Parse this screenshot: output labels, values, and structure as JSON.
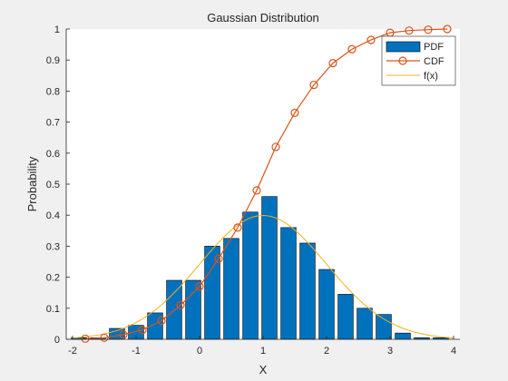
{
  "chart_data": {
    "type": "bar",
    "title": "Gaussian Distribution",
    "xlabel": "X",
    "ylabel": "Probability",
    "xlim": [
      -2.1,
      4.1
    ],
    "ylim": [
      0,
      1
    ],
    "xticks": [
      -2,
      -1,
      0,
      1,
      2,
      3,
      4
    ],
    "yticks": [
      0,
      0.1,
      0.2,
      0.3,
      0.4,
      0.5,
      0.6,
      0.7,
      0.8,
      0.9,
      1
    ],
    "grid": false,
    "legend_position": "top-right",
    "series": [
      {
        "name": "PDF",
        "kind": "bar",
        "color": "#0072BD",
        "bar_width": 0.24,
        "x": [
          -1.9,
          -1.6,
          -1.3,
          -1.0,
          -0.7,
          -0.4,
          -0.1,
          0.2,
          0.5,
          0.8,
          1.1,
          1.4,
          1.7,
          2.0,
          2.3,
          2.6,
          2.9,
          3.2,
          3.5,
          3.8
        ],
        "values": [
          0.005,
          0.005,
          0.035,
          0.045,
          0.085,
          0.19,
          0.19,
          0.3,
          0.325,
          0.41,
          0.46,
          0.36,
          0.31,
          0.225,
          0.145,
          0.1,
          0.08,
          0.02,
          0.005,
          0.005
        ]
      },
      {
        "name": "CDF",
        "kind": "line-markers",
        "color": "#D95319",
        "x": [
          -1.8,
          -1.5,
          -1.2,
          -0.9,
          -0.6,
          -0.3,
          0.0,
          0.3,
          0.6,
          0.9,
          1.2,
          1.5,
          1.8,
          2.1,
          2.4,
          2.7,
          3.0,
          3.3,
          3.6,
          3.9
        ],
        "values": [
          0.002,
          0.005,
          0.015,
          0.03,
          0.06,
          0.11,
          0.17,
          0.26,
          0.36,
          0.48,
          0.62,
          0.73,
          0.82,
          0.89,
          0.935,
          0.965,
          0.988,
          0.995,
          0.998,
          1.0
        ]
      },
      {
        "name": "f(x)",
        "kind": "line",
        "color": "#EDB120",
        "mean": 1,
        "std": 1
      }
    ]
  }
}
